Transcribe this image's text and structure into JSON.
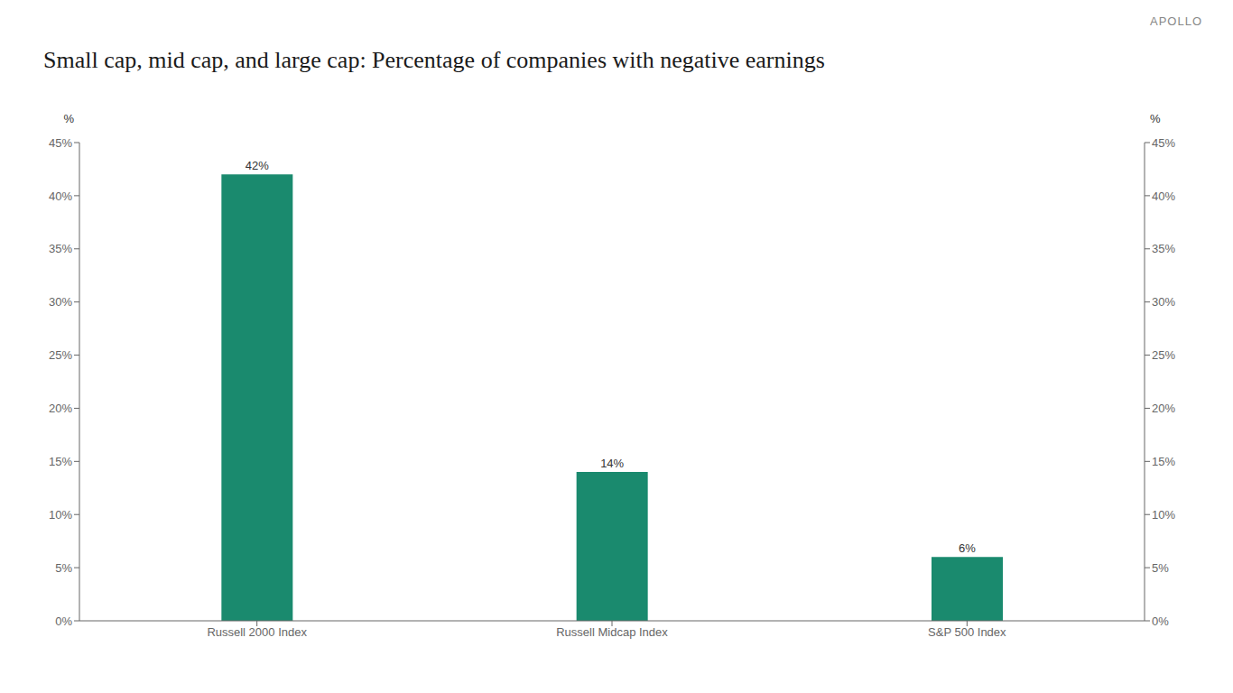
{
  "chart_data": {
    "type": "bar",
    "title": "Small cap, mid cap, and large cap: Percentage of companies with negative earnings",
    "annotations": [
      "APOLLO"
    ],
    "ylabel": "%",
    "y2label": "%",
    "categories": [
      "Russell 2000 Index",
      "Russell Midcap Index",
      "S&P 500 Index"
    ],
    "values": [
      42,
      14,
      6
    ],
    "value_labels": [
      "42%",
      "14%",
      "6%"
    ],
    "data_labels": true,
    "color": "#1a8a6e",
    "ylim": [
      0,
      45
    ],
    "yticks": [
      {
        "value": 0,
        "label": "0%"
      },
      {
        "value": 5,
        "label": "5%"
      },
      {
        "value": 10,
        "label": "10%"
      },
      {
        "value": 15,
        "label": "15%"
      },
      {
        "value": 20,
        "label": "20%"
      },
      {
        "value": 25,
        "label": "25%"
      },
      {
        "value": 30,
        "label": "30%"
      },
      {
        "value": 35,
        "label": "35%"
      },
      {
        "value": 40,
        "label": "40%"
      },
      {
        "value": 45,
        "label": "45%"
      }
    ],
    "y2lim": [
      0,
      45
    ],
    "y2ticks": [
      {
        "value": 0,
        "label": "0%"
      },
      {
        "value": 5,
        "label": "5%"
      },
      {
        "value": 10,
        "label": "10%"
      },
      {
        "value": 15,
        "label": "15%"
      },
      {
        "value": 20,
        "label": "20%"
      },
      {
        "value": 25,
        "label": "25%"
      },
      {
        "value": 30,
        "label": "30%"
      },
      {
        "value": 35,
        "label": "35%"
      },
      {
        "value": 40,
        "label": "40%"
      },
      {
        "value": 45,
        "label": "45%"
      }
    ],
    "grid": false
  }
}
